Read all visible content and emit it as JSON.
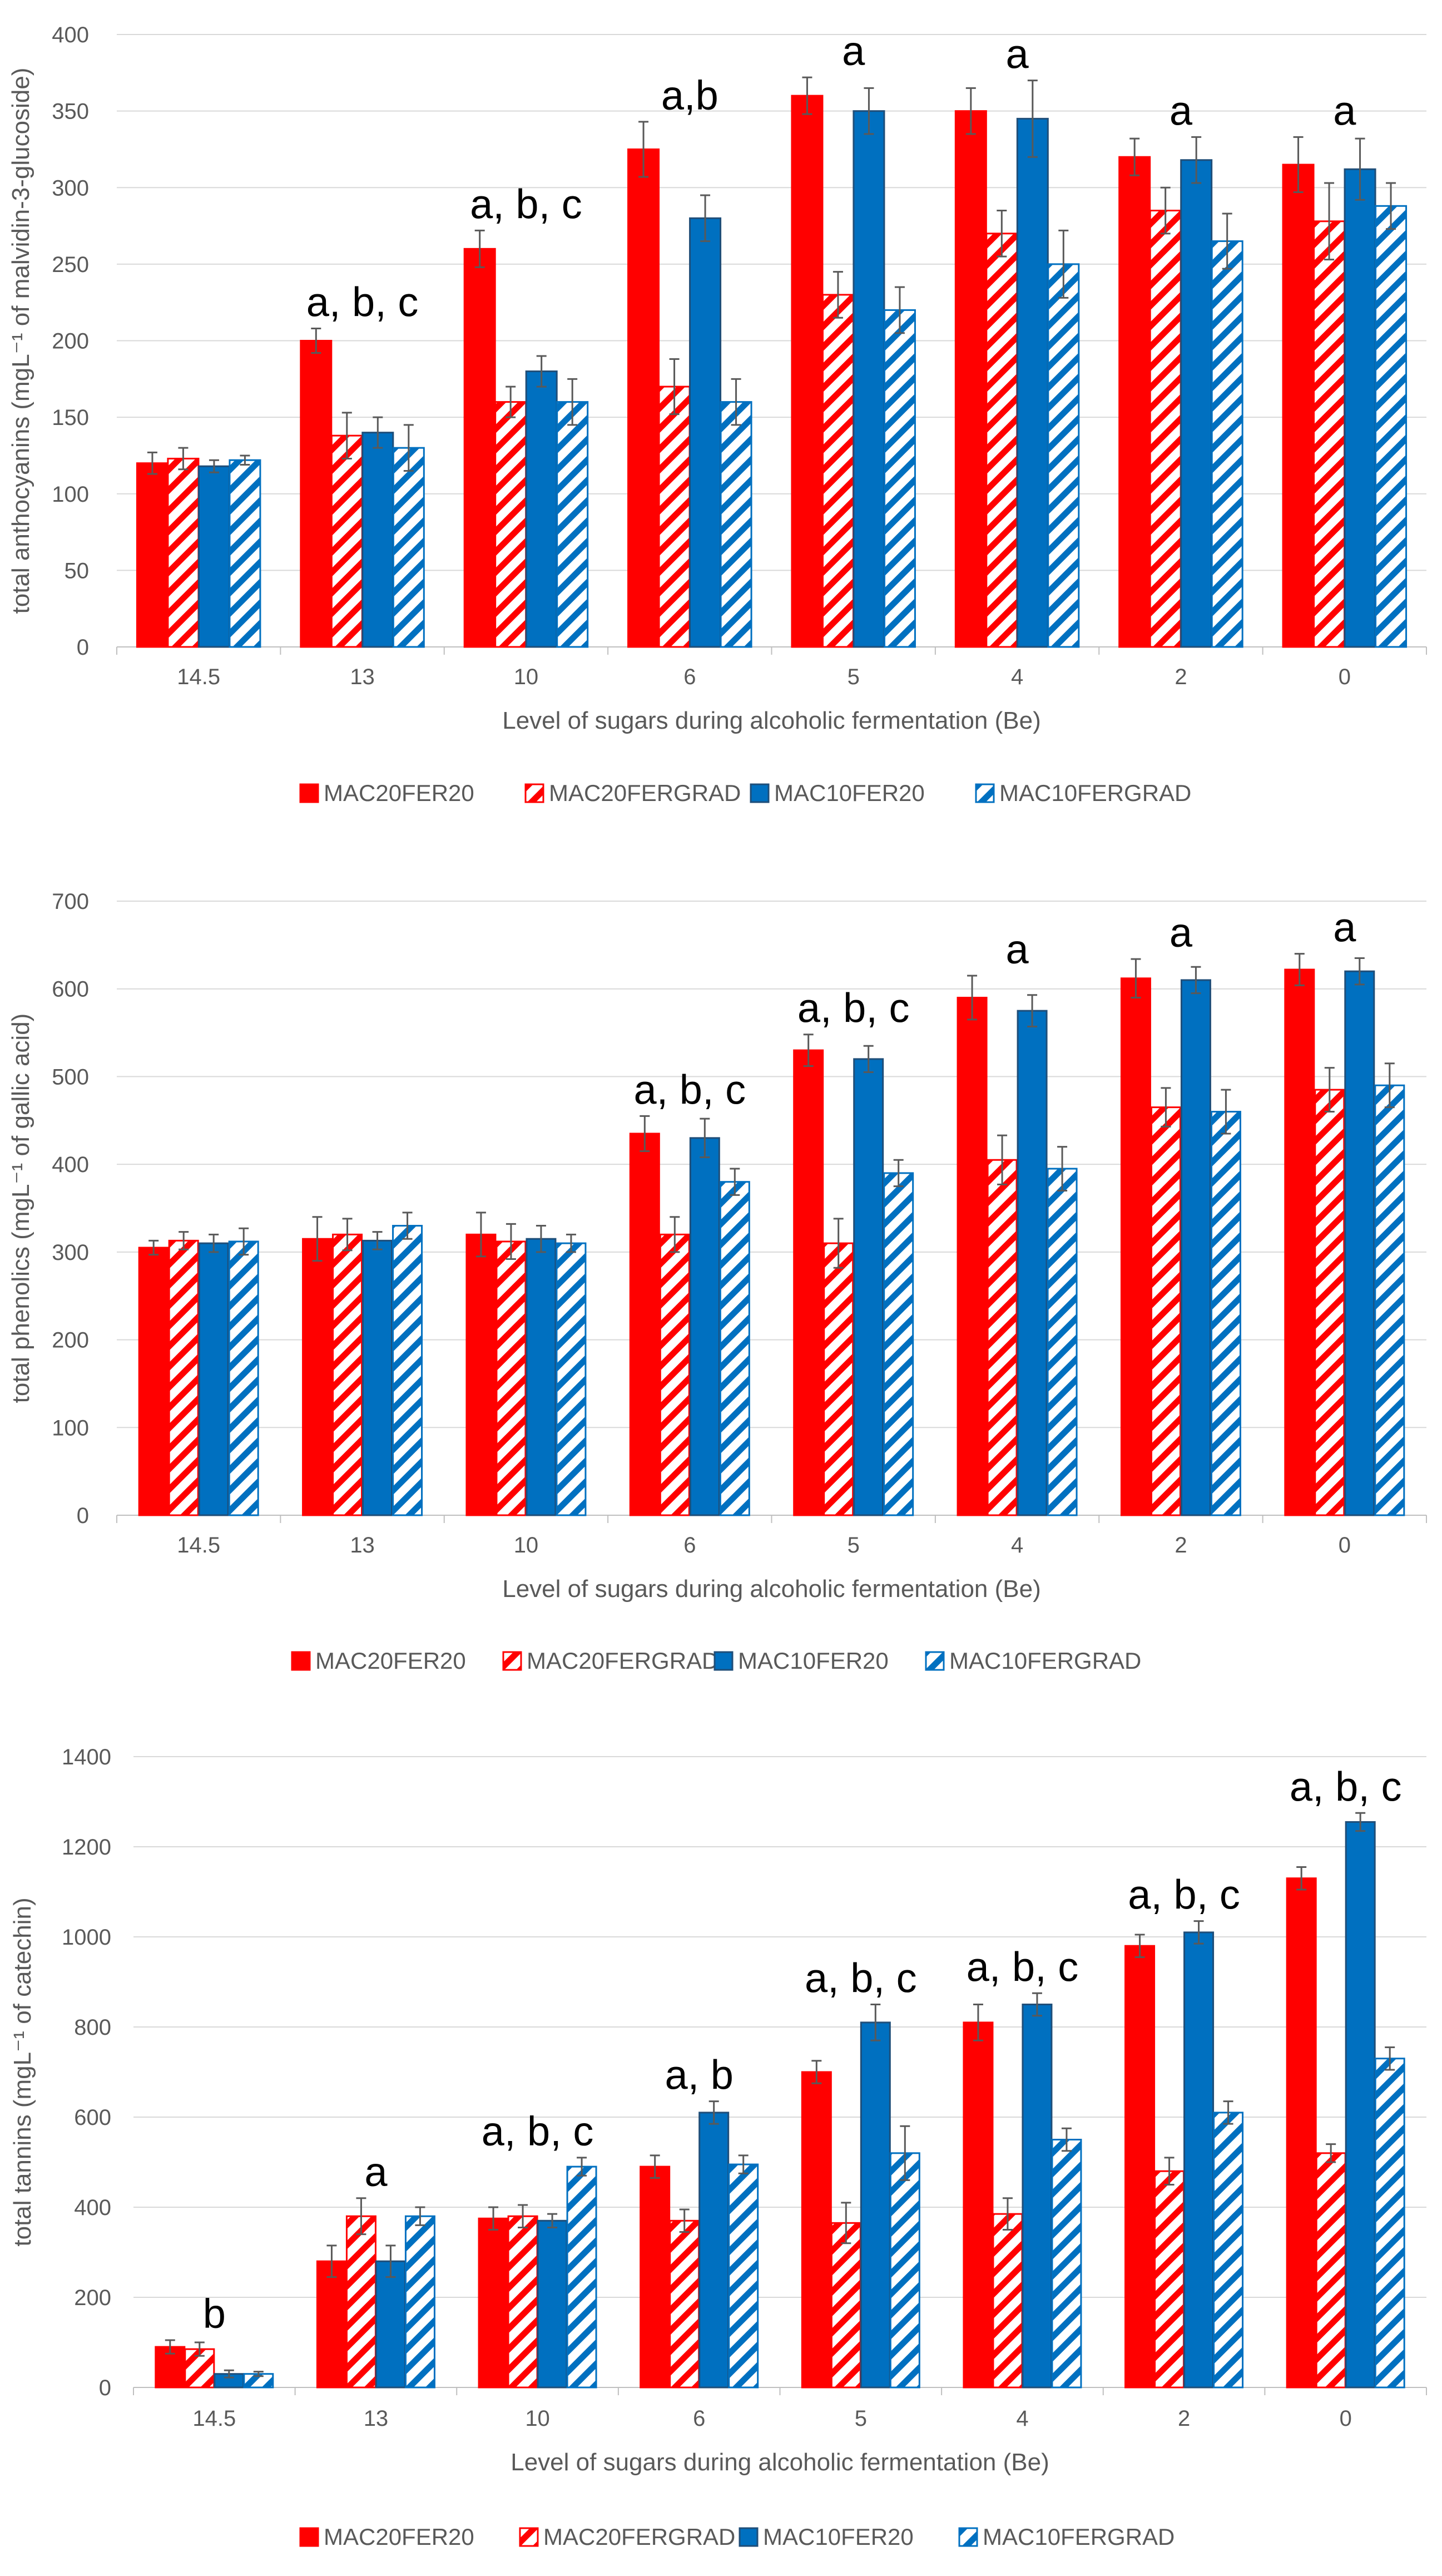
{
  "colors": {
    "red": "#ff0000",
    "blue": "#0070c0",
    "blue_border": "#1f4e79",
    "grid": "#d9d9d9",
    "axis": "#bfbfbf",
    "error": "#595959"
  },
  "chart_data": [
    {
      "type": "bar",
      "title": "",
      "xlabel": "Level of sugars during alcoholic fermentation (Be)",
      "ylabel": "total anthocyanins (mgL⁻¹ of malvidin-3-glucoside)",
      "ylim": [
        0,
        400
      ],
      "yticks": [
        0,
        50,
        100,
        150,
        200,
        250,
        300,
        350,
        400
      ],
      "grid": true,
      "legend_position": "bottom",
      "categories": [
        "14.5",
        "13",
        "10",
        "6",
        "5",
        "4",
        "2",
        "0"
      ],
      "series": [
        {
          "name": "MAC20FER20",
          "style": "solid-red",
          "values": [
            120,
            200,
            260,
            325,
            360,
            350,
            320,
            315
          ],
          "errors": [
            7,
            8,
            12,
            18,
            12,
            15,
            12,
            18
          ]
        },
        {
          "name": "MAC20FERGRAD",
          "style": "hatched-red",
          "values": [
            123,
            138,
            160,
            170,
            230,
            270,
            285,
            278
          ],
          "errors": [
            7,
            15,
            10,
            18,
            15,
            15,
            15,
            25
          ]
        },
        {
          "name": "MAC10FER20",
          "style": "solid-blue",
          "values": [
            118,
            140,
            180,
            280,
            350,
            345,
            318,
            312
          ],
          "errors": [
            4,
            10,
            10,
            15,
            15,
            25,
            15,
            20
          ]
        },
        {
          "name": "MAC10FERGRAD",
          "style": "hatched-blue",
          "values": [
            122,
            130,
            160,
            160,
            220,
            250,
            265,
            288
          ],
          "errors": [
            3,
            15,
            15,
            15,
            15,
            22,
            18,
            15
          ]
        }
      ],
      "annotations": [
        "",
        "a, b, c",
        "a, b, c",
        "a,b",
        "a",
        "a",
        "a",
        "a"
      ]
    },
    {
      "type": "bar",
      "title": "",
      "xlabel": "Level of sugars during alcoholic fermentation (Be)",
      "ylabel": "total phenolics (mgL⁻¹ of gallic acid)",
      "ylim": [
        0,
        700
      ],
      "yticks": [
        0,
        100,
        200,
        300,
        400,
        500,
        600,
        700
      ],
      "grid": true,
      "legend_position": "bottom",
      "categories": [
        "14.5",
        "13",
        "10",
        "6",
        "5",
        "4",
        "2",
        "0"
      ],
      "series": [
        {
          "name": "MAC20FER20",
          "style": "solid-red",
          "values": [
            305,
            315,
            320,
            435,
            530,
            590,
            612,
            622
          ],
          "errors": [
            8,
            25,
            25,
            20,
            18,
            25,
            22,
            18
          ]
        },
        {
          "name": "MAC20FERGRAD",
          "style": "hatched-red",
          "values": [
            313,
            320,
            312,
            320,
            310,
            405,
            465,
            485
          ],
          "errors": [
            10,
            18,
            20,
            20,
            28,
            28,
            22,
            25
          ]
        },
        {
          "name": "MAC10FER20",
          "style": "solid-blue",
          "values": [
            310,
            313,
            315,
            430,
            520,
            575,
            610,
            620
          ],
          "errors": [
            10,
            10,
            15,
            22,
            15,
            18,
            15,
            15
          ]
        },
        {
          "name": "MAC10FERGRAD",
          "style": "hatched-blue",
          "values": [
            312,
            330,
            310,
            380,
            390,
            395,
            460,
            490
          ],
          "errors": [
            15,
            15,
            10,
            15,
            15,
            25,
            25,
            25
          ]
        }
      ],
      "annotations": [
        "",
        "",
        "",
        "a, b, c",
        "a, b, c",
        "a",
        "a",
        "a"
      ]
    },
    {
      "type": "bar",
      "title": "",
      "xlabel": "Level of sugars during alcoholic fermentation (Be)",
      "ylabel": "total tannins (mgL⁻¹ of catechin)",
      "ylim": [
        0,
        1400
      ],
      "yticks": [
        0,
        200,
        400,
        600,
        800,
        1000,
        1200,
        1400
      ],
      "grid": true,
      "legend_position": "bottom",
      "categories": [
        "14.5",
        "13",
        "10",
        "6",
        "5",
        "4",
        "2",
        "0"
      ],
      "series": [
        {
          "name": "MAC20FER20",
          "style": "solid-red",
          "values": [
            90,
            280,
            375,
            490,
            700,
            810,
            980,
            1130
          ],
          "errors": [
            15,
            35,
            25,
            25,
            25,
            40,
            25,
            25
          ]
        },
        {
          "name": "MAC20FERGRAD",
          "style": "hatched-red",
          "values": [
            85,
            380,
            380,
            370,
            365,
            385,
            480,
            520
          ],
          "errors": [
            15,
            40,
            25,
            25,
            45,
            35,
            30,
            20
          ]
        },
        {
          "name": "MAC10FER20",
          "style": "solid-blue",
          "values": [
            30,
            280,
            370,
            610,
            810,
            850,
            1010,
            1255
          ],
          "errors": [
            8,
            35,
            15,
            25,
            40,
            25,
            25,
            20
          ]
        },
        {
          "name": "MAC10FERGRAD",
          "style": "hatched-blue",
          "values": [
            30,
            380,
            490,
            495,
            520,
            550,
            610,
            730
          ],
          "errors": [
            5,
            20,
            20,
            20,
            60,
            25,
            25,
            25
          ]
        }
      ],
      "annotations": [
        "b",
        "a",
        "a, b, c",
        "a, b",
        "a, b, c",
        "a, b, c",
        "a, b, c",
        "a, b, c"
      ]
    }
  ]
}
